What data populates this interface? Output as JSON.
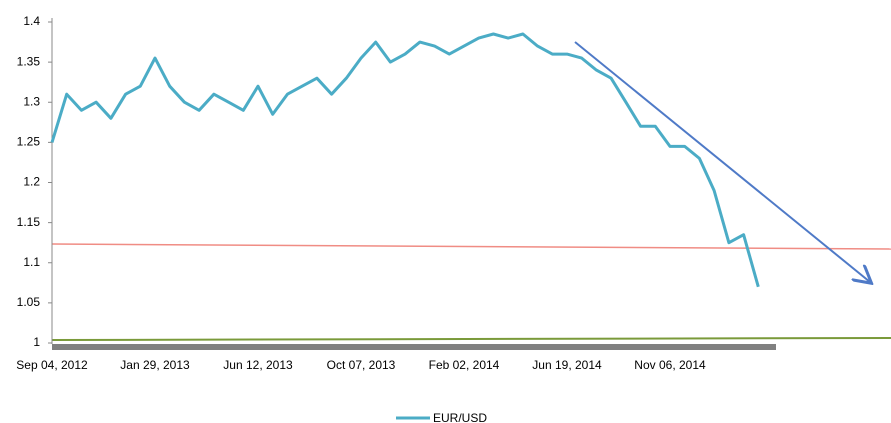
{
  "chart_data": {
    "type": "line",
    "categories": [
      "Sep 04, 2012",
      null,
      null,
      null,
      null,
      null,
      null,
      "Jan 29, 2013",
      null,
      null,
      null,
      null,
      null,
      null,
      "Jun 12, 2013",
      null,
      null,
      null,
      null,
      null,
      null,
      "Oct 07, 2013",
      null,
      null,
      null,
      null,
      null,
      null,
      "Feb 02, 2014",
      null,
      null,
      null,
      null,
      null,
      null,
      "Jun 19, 2014",
      null,
      null,
      null,
      null,
      null,
      null,
      "Nov 06, 2014",
      null,
      null,
      null,
      null,
      null,
      null
    ],
    "series": [
      {
        "name": "EUR/USD",
        "color": "#4bacc6",
        "values": [
          1.25,
          1.31,
          1.29,
          1.3,
          1.28,
          1.31,
          1.32,
          1.355,
          1.32,
          1.3,
          1.29,
          1.31,
          1.3,
          1.29,
          1.32,
          1.285,
          1.31,
          1.32,
          1.33,
          1.31,
          1.33,
          1.355,
          1.375,
          1.35,
          1.36,
          1.375,
          1.37,
          1.36,
          1.37,
          1.38,
          1.385,
          1.38,
          1.385,
          1.37,
          1.36,
          1.36,
          1.355,
          1.34,
          1.33,
          1.3,
          1.27,
          1.27,
          1.245,
          1.245,
          1.23,
          1.19,
          1.125,
          1.135,
          1.07
        ]
      }
    ],
    "ylim": [
      1,
      1.4
    ],
    "yticks": [
      1,
      1.05,
      1.1,
      1.15,
      1.2,
      1.25,
      1.3,
      1.35,
      1.4
    ],
    "grid": false,
    "legend": "bottom"
  }
}
